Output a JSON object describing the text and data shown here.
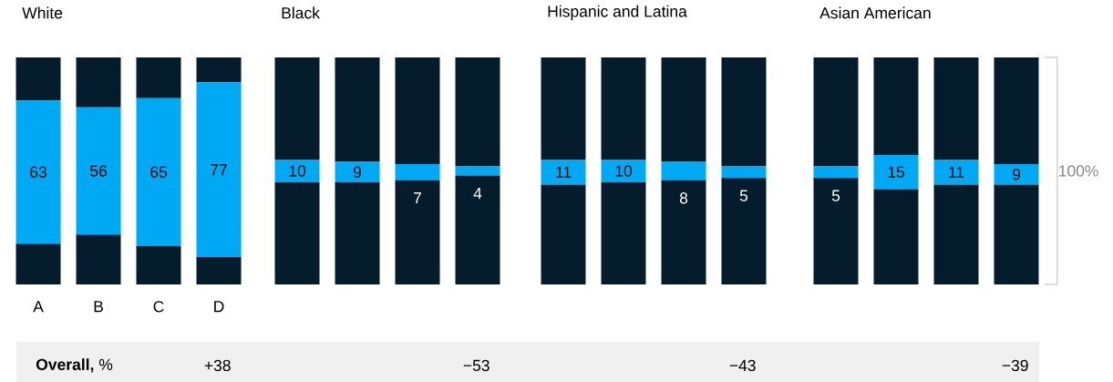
{
  "chart_data": [
    {
      "type": "bar",
      "stacked": true,
      "title": "White",
      "categories": [
        "A",
        "B",
        "C",
        "D"
      ],
      "ylim": [
        0,
        100
      ],
      "tick_labels": "x",
      "series": [
        {
          "color": "#051c2c",
          "values": [
            18,
            22,
            17,
            12
          ]
        },
        {
          "color": "#00a9f4",
          "values": [
            63,
            56,
            65,
            77
          ],
          "value_labels": [
            "63",
            "56",
            "65",
            "77"
          ]
        },
        {
          "color": "#051c2c",
          "values": [
            19,
            22,
            18,
            11
          ]
        }
      ],
      "annotations": [
        "**Overall,** %",
        "+38"
      ]
    },
    {
      "type": "bar",
      "stacked": true,
      "title": "Black",
      "categories": [
        null,
        null,
        null,
        null
      ],
      "ylim": [
        0,
        100
      ],
      "tick_labels": false,
      "series": [
        {
          "color": "#051c2c",
          "values": [
            45,
            45,
            46,
            48
          ]
        },
        {
          "color": "#00a9f4",
          "values": [
            10,
            9,
            7,
            4
          ],
          "value_labels": [
            "10",
            "9",
            "7",
            "4"
          ]
        },
        {
          "color": "#051c2c",
          "values": [
            45,
            46,
            47,
            48
          ]
        }
      ],
      "annotations": [
        "−53"
      ]
    },
    {
      "type": "bar",
      "stacked": true,
      "title": "Hispanic and Latina",
      "categories": [
        null,
        null,
        null,
        null
      ],
      "ylim": [
        0,
        100
      ],
      "tick_labels": false,
      "series": [
        {
          "color": "#051c2c",
          "values": [
            44,
            45,
            46,
            47
          ]
        },
        {
          "color": "#00a9f4",
          "values": [
            11,
            10,
            8,
            5
          ],
          "value_labels": [
            "11",
            "10",
            "8",
            "5"
          ]
        },
        {
          "color": "#051c2c",
          "values": [
            45,
            45,
            46,
            48
          ]
        }
      ],
      "annotations": [
        "−43"
      ]
    },
    {
      "type": "bar",
      "stacked": true,
      "title": "Asian American",
      "categories": [
        null,
        null,
        null,
        null
      ],
      "ylim": [
        0,
        100
      ],
      "tick_labels": false,
      "series": [
        {
          "color": "#051c2c",
          "values": [
            47,
            42,
            44,
            44
          ]
        },
        {
          "color": "#00a9f4",
          "values": [
            5,
            15,
            11,
            9
          ],
          "value_labels": [
            "5",
            "15",
            "11",
            "9"
          ]
        },
        {
          "color": "#051c2c",
          "values": [
            48,
            43,
            45,
            47
          ]
        }
      ],
      "annotations": [
        "100%",
        "−39"
      ]
    }
  ]
}
